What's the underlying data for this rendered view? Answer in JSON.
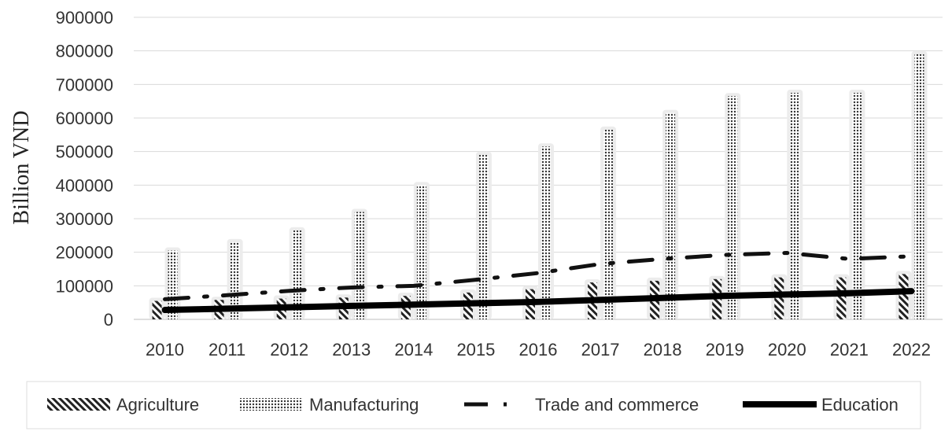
{
  "chart_data": {
    "type": "bar",
    "ylabel": "Billion VND",
    "ylim": [
      0,
      900000
    ],
    "yticks": [
      0,
      100000,
      200000,
      300000,
      400000,
      500000,
      600000,
      700000,
      800000,
      900000
    ],
    "grid": true,
    "legend_position": "bottom",
    "categories": [
      "2010",
      "2011",
      "2012",
      "2013",
      "2014",
      "2015",
      "2016",
      "2017",
      "2018",
      "2019",
      "2020",
      "2021",
      "2022"
    ],
    "series": [
      {
        "name": "Agriculture",
        "kind": "bar",
        "pattern": "diagonal-hatch",
        "values": [
          55000,
          58000,
          62000,
          65000,
          70000,
          80000,
          90000,
          110000,
          115000,
          120000,
          125000,
          125000,
          135000
        ]
      },
      {
        "name": "Manufacturing",
        "kind": "bar",
        "pattern": "dense-dots",
        "values": [
          205000,
          230000,
          265000,
          320000,
          400000,
          490000,
          515000,
          565000,
          615000,
          665000,
          675000,
          675000,
          790000
        ]
      },
      {
        "name": "Trade and commerce",
        "kind": "line",
        "style": "dash-dot",
        "values": [
          60000,
          72000,
          85000,
          95000,
          100000,
          118000,
          138000,
          165000,
          180000,
          192000,
          198000,
          180000,
          188000
        ]
      },
      {
        "name": "Education",
        "kind": "line",
        "style": "solid-thick",
        "values": [
          28000,
          32000,
          36000,
          40000,
          44000,
          48000,
          52000,
          58000,
          64000,
          70000,
          74000,
          78000,
          84000
        ]
      }
    ]
  }
}
